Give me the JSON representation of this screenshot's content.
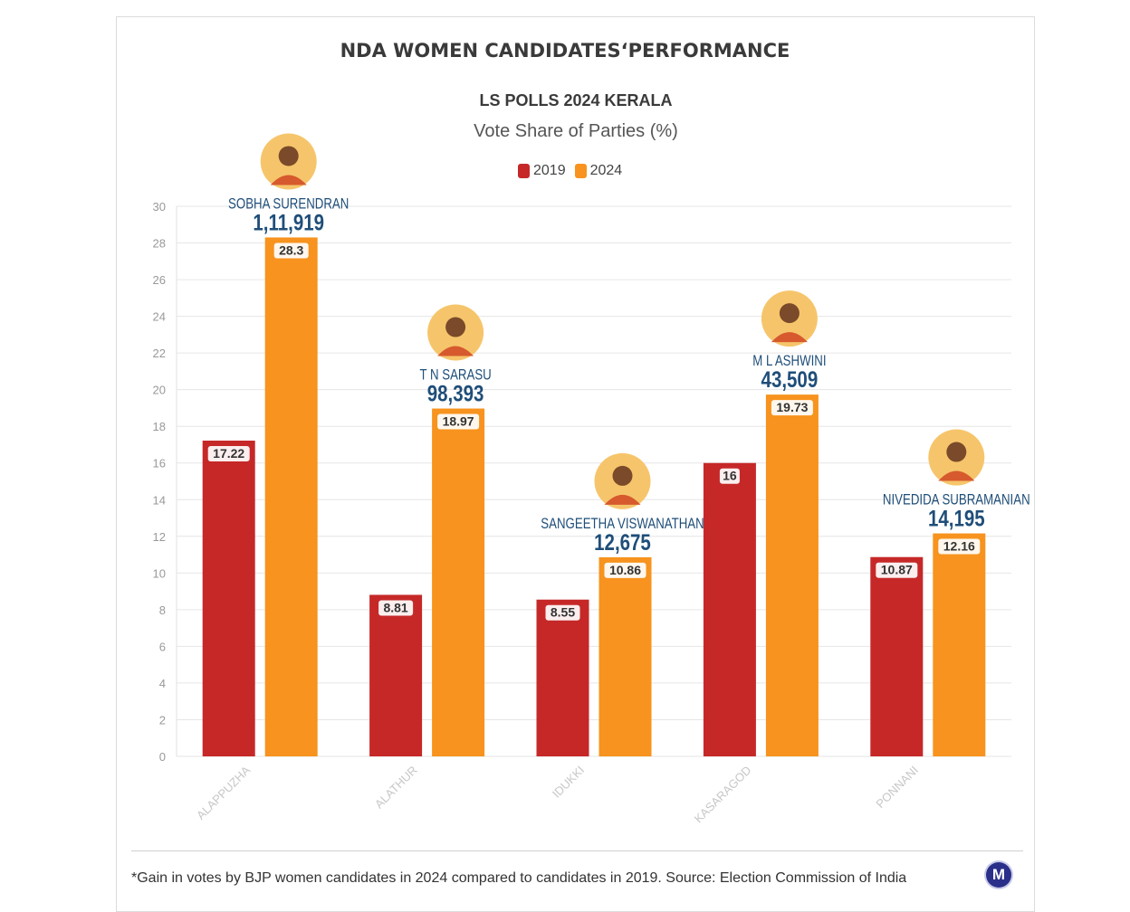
{
  "chart_data": {
    "type": "bar",
    "title": "NDA WOMEN CANDIDATESʻPERFORMANCE",
    "subtitle": "LS POLLS 2024 KERALA",
    "ylabel": "Vote Share of Parties (%)",
    "categories": [
      "ALAPPUZHA",
      "ALATHUR",
      "IDUKKI",
      "KASARAGOD",
      "PONNANI"
    ],
    "series": [
      {
        "name": "2019",
        "color": "#c62828",
        "values": [
          17.22,
          8.81,
          8.55,
          16,
          10.87
        ],
        "labels": [
          "17.22",
          "8.81",
          "8.55",
          "16",
          "10.87"
        ]
      },
      {
        "name": "2024",
        "color": "#f7931e",
        "values": [
          28.3,
          18.97,
          10.86,
          19.73,
          12.16
        ],
        "labels": [
          "28.3",
          "18.97",
          "10.86",
          "19.73",
          "12.16"
        ]
      }
    ],
    "ylim": [
      0,
      30
    ],
    "yticks": [
      0,
      2,
      4,
      6,
      8,
      10,
      12,
      14,
      16,
      18,
      20,
      22,
      24,
      26,
      28,
      30
    ],
    "grid": true,
    "legend": "top-center",
    "annotations": [
      {
        "category": "ALAPPUZHA",
        "name": "SOBHA SURENDRAN",
        "votes": "1,11,919"
      },
      {
        "category": "ALATHUR",
        "name": "T N SARASU",
        "votes": "98,393"
      },
      {
        "category": "IDUKKI",
        "name": "SANGEETHA VISWANATHAN",
        "votes": "12,675"
      },
      {
        "category": "KASARAGOD",
        "name": "M L ASHWINI",
        "votes": "43,509"
      },
      {
        "category": "PONNANI",
        "name": "NIVEDIDA SUBRAMANIAN",
        "votes": "14,195"
      }
    ]
  },
  "legend": {
    "label_2019": "2019",
    "label_2024": "2024"
  },
  "footnote": "*Gain in votes by BJP women candidates in 2024 compared to candidates in 2019. Source: Election Commission of India",
  "logo": {
    "letter": "M",
    "color": "#2a2f8a"
  },
  "colors": {
    "name_text": "#1f4e79",
    "grid": "#e6e6e6",
    "axis_text": "#888888"
  }
}
